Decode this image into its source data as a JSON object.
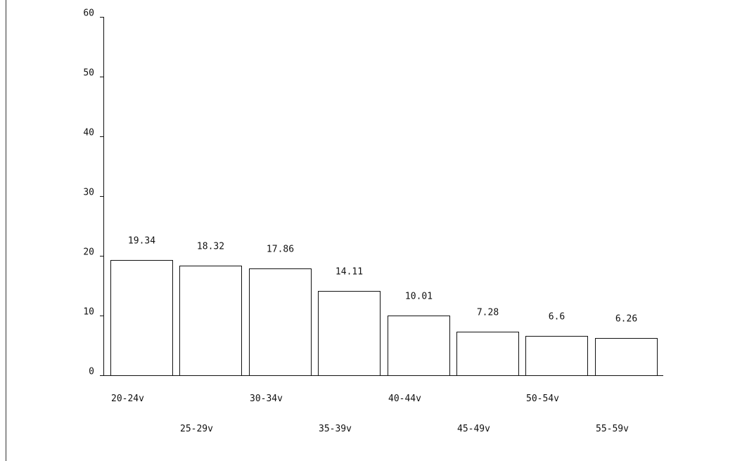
{
  "chart_data": {
    "type": "bar",
    "categories": [
      "20-24v",
      "25-29v",
      "30-34v",
      "35-39v",
      "40-44v",
      "45-49v",
      "50-54v",
      "55-59v"
    ],
    "values": [
      19.34,
      18.32,
      17.86,
      14.11,
      10.01,
      7.28,
      6.6,
      6.26
    ],
    "data_labels": [
      "19.34",
      "18.32",
      "17.86",
      "14.11",
      "10.01",
      "7.28",
      "6.6",
      "6.26"
    ],
    "yticks": [
      "0",
      "10",
      "20",
      "30",
      "40",
      "50",
      "60"
    ],
    "ylim": [
      0,
      60
    ],
    "grid": false,
    "category_labels_staggered": true
  }
}
